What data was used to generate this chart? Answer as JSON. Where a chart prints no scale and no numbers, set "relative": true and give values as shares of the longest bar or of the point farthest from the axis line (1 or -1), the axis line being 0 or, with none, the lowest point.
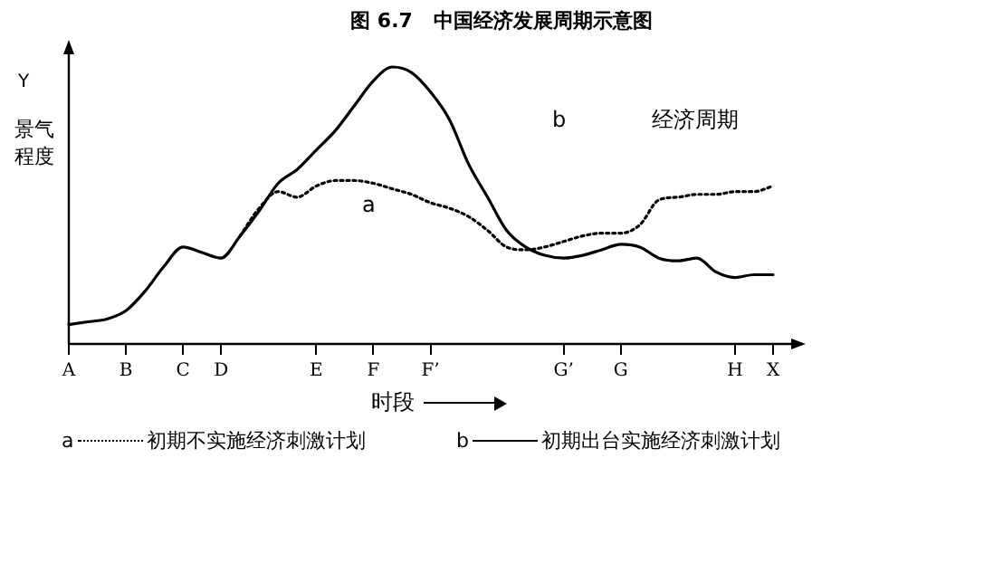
{
  "chart_data": {
    "type": "line",
    "title": "图 6.7   中国经济发展周期示意图",
    "xlabel": "时段",
    "ylabel": "景气程度",
    "relative": true,
    "legend": "bottom",
    "grid": false,
    "marker": "none",
    "categories": [
      "A",
      null,
      null,
      "B",
      null,
      null,
      "C",
      null,
      "D",
      null,
      null,
      null,
      null,
      "E",
      null,
      null,
      "F",
      null,
      null,
      "F’",
      null,
      null,
      null,
      null,
      null,
      null,
      "G’",
      null,
      null,
      "G",
      null,
      null,
      null,
      null,
      null,
      "H",
      null,
      "X"
    ],
    "series": [
      {
        "name": "初期不实施经济刺激计划",
        "color": "#000000",
        "line_style": "dotted",
        "values": [
          null,
          null,
          null,
          null,
          null,
          null,
          null,
          null,
          null,
          0.39,
          0.49,
          0.55,
          0.53,
          0.57,
          0.59,
          0.59,
          0.58,
          0.56,
          0.54,
          0.51,
          0.49,
          0.46,
          0.41,
          0.35,
          0.34,
          0.35,
          0.37,
          0.39,
          0.4,
          0.4,
          0.43,
          0.52,
          0.53,
          0.54,
          0.54,
          0.55,
          0.55,
          0.57
        ]
      },
      {
        "name": "初期出台实施经济刺激计划",
        "color": "#000000",
        "line_style": "solid",
        "values": [
          0.07,
          0.08,
          0.09,
          0.12,
          0.19,
          0.28,
          0.35,
          0.33,
          0.31,
          0.39,
          0.48,
          0.58,
          0.63,
          0.7,
          0.77,
          0.86,
          0.95,
          1,
          0.98,
          0.91,
          0.81,
          0.65,
          0.53,
          0.41,
          0.35,
          0.32,
          0.31,
          0.32,
          0.34,
          0.36,
          0.35,
          0.31,
          0.3,
          0.31,
          0.26,
          0.24,
          0.25,
          0.25
        ]
      }
    ],
    "annotations": [
      "Y",
      "经济周期",
      "a",
      "b"
    ]
  }
}
